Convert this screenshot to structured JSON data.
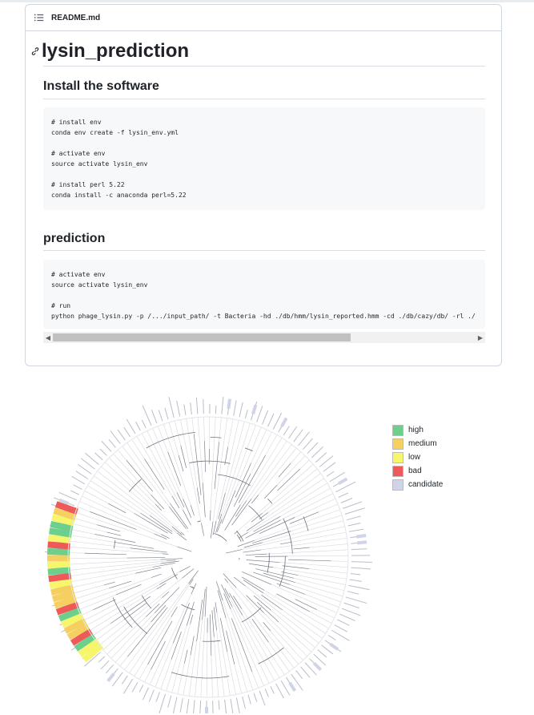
{
  "readme": {
    "filename": "README.md",
    "title": "lysin_prediction",
    "sections": [
      {
        "heading": "Install the software",
        "code": [
          "# install env",
          "conda env create -f lysin_env.yml",
          "",
          "# activate env",
          "source activate lysin_env",
          "",
          "# install perl 5.22",
          "conda install -c anaconda perl=5.22"
        ]
      },
      {
        "heading": "prediction",
        "code": [
          "# activate env",
          "source activate lysin_env",
          "",
          "# run",
          "python phage_lysin.py -p /.../input_path/ -t Bacteria -hd ./db/hmm/lysin_reported.hmm -cd ./db/cazy/db/ -rl ./"
        ]
      }
    ]
  },
  "legend": {
    "items": [
      {
        "label": "high",
        "color": "#6dcf8c"
      },
      {
        "label": "medium",
        "color": "#f5d061"
      },
      {
        "label": "low",
        "color": "#f7f56a"
      },
      {
        "label": "bad",
        "color": "#ee5a5a"
      },
      {
        "label": "candidate",
        "color": "#cfd4e8"
      }
    ]
  },
  "icons": {
    "header": "list-icon",
    "title_anchor": "link-icon",
    "scroll_left": "triangle-left-icon",
    "scroll_right": "triangle-right-icon"
  }
}
